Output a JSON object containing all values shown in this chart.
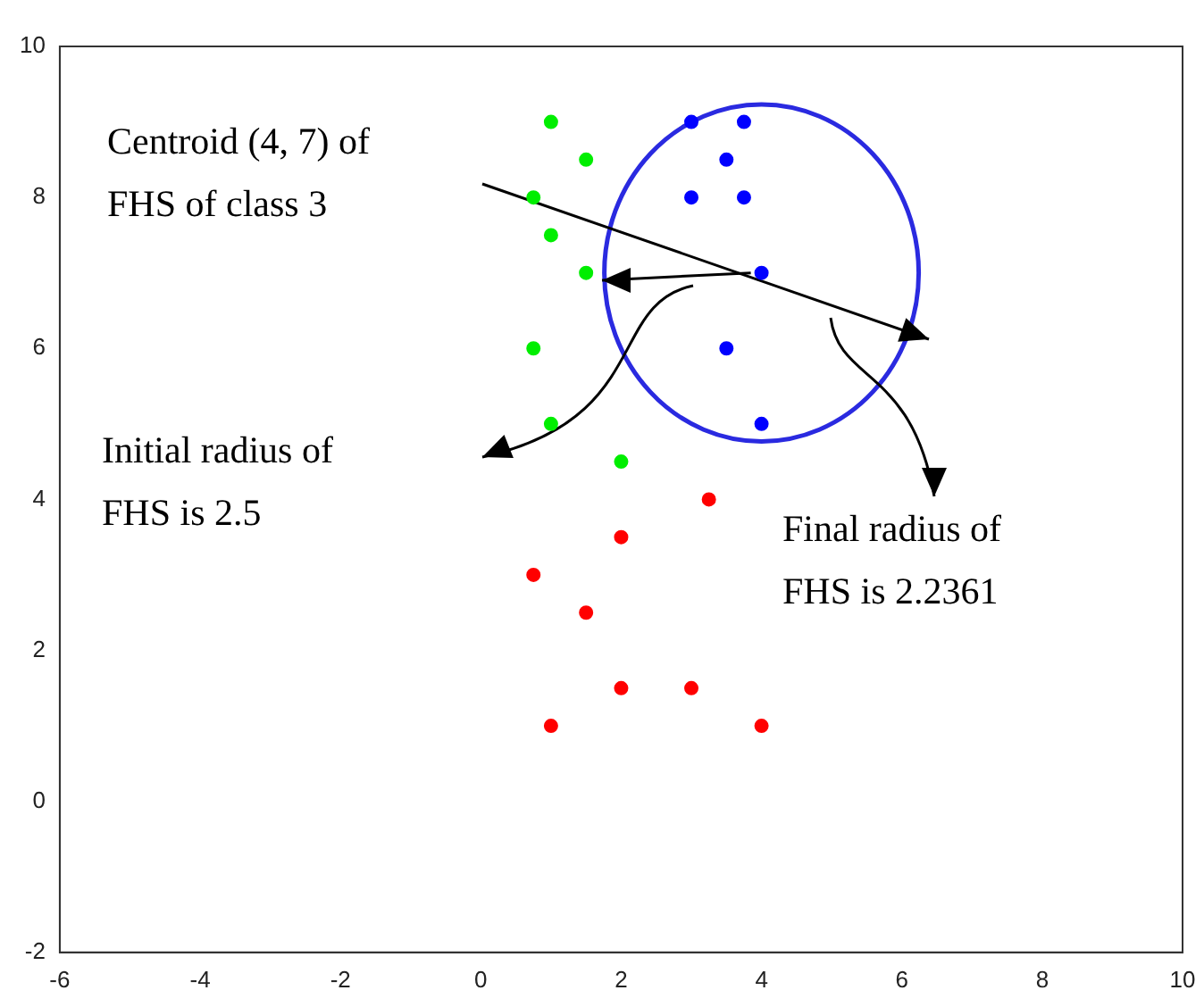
{
  "chart_data": {
    "type": "scatter",
    "xlim": [
      -6,
      10
    ],
    "ylim": [
      -2,
      10
    ],
    "xticks": [
      -6,
      -4,
      -2,
      0,
      2,
      4,
      6,
      8,
      10
    ],
    "yticks": [
      -2,
      0,
      2,
      4,
      6,
      8,
      10
    ],
    "grid": false,
    "legend": false,
    "marker": "circle",
    "series": [
      {
        "color": "#00ee00",
        "x": [
          1,
          1.5,
          0.75,
          1,
          1.5,
          0.75,
          1,
          2
        ],
        "values": [
          9,
          8.5,
          8,
          7.5,
          7,
          6,
          5,
          4.5
        ]
      },
      {
        "color": "#0000ff",
        "x": [
          3,
          3.75,
          3.5,
          3,
          3.75,
          4,
          3.5,
          4
        ],
        "values": [
          9,
          9,
          8.5,
          8,
          8,
          7,
          6,
          5
        ]
      },
      {
        "color": "#ff0000",
        "x": [
          3.25,
          2,
          0.75,
          1.5,
          2,
          3,
          1,
          4
        ],
        "values": [
          4,
          3.5,
          3,
          2.5,
          1.5,
          1.5,
          1,
          1
        ]
      }
    ],
    "annotations": [
      "Centroid (4, 7) of\nFHS of class 3",
      "Initial radius of\nFHS is 2.5",
      "Final radius of\nFHS is 2.2361"
    ]
  }
}
